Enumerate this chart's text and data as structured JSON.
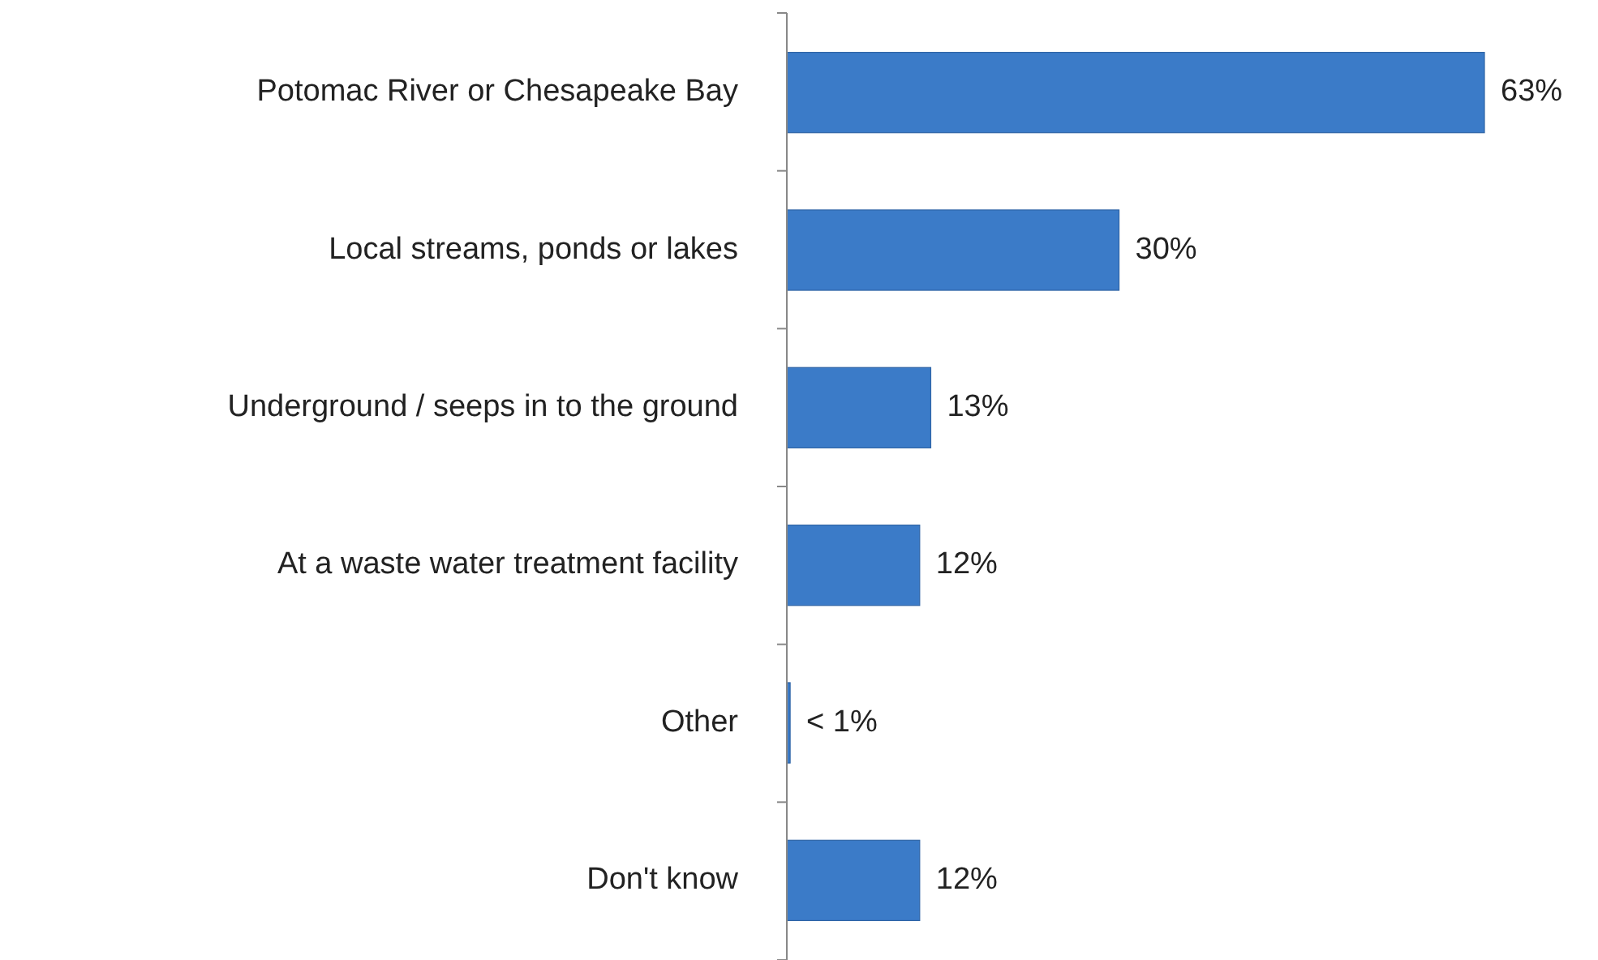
{
  "chart_data": {
    "type": "bar",
    "orientation": "horizontal",
    "categories": [
      "Potomac River or Chesapeake Bay",
      "Local streams, ponds or lakes",
      "Underground / seeps in to the ground",
      "At a waste water treatment facility",
      "Other",
      "Don't know"
    ],
    "values": [
      63,
      30,
      13,
      12,
      0.3,
      12
    ],
    "value_labels": [
      "63%",
      "30%",
      "13%",
      "12%",
      "< 1%",
      "12%"
    ],
    "color": "#3b7bc8"
  }
}
